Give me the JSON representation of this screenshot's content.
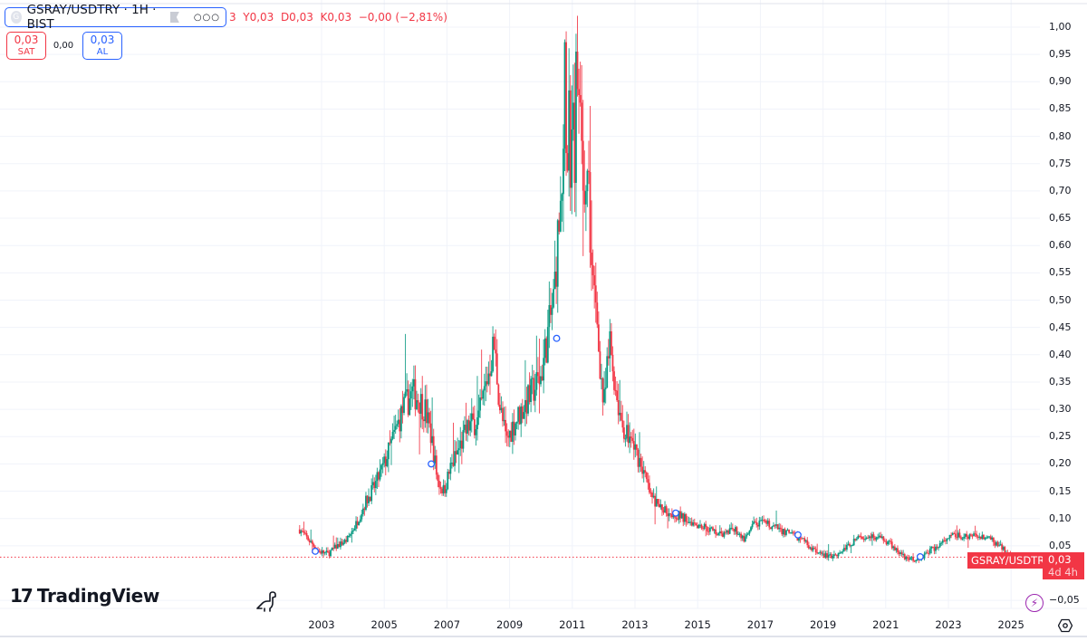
{
  "header": {
    "symbol_title": "GSRAY/USDTRY · 1H · BIST",
    "symbol_icon_letter": "G",
    "ohlc_text": "3  Y0,03  D0,03  K0,03  −0,00 (−2,81%)",
    "sell": {
      "price": "0,03",
      "label": "SAT"
    },
    "spread": "0,00",
    "buy": {
      "price": "0,03",
      "label": "AL"
    }
  },
  "price_scale": {
    "labels": [
      "1,00",
      "0,95",
      "0,90",
      "0,85",
      "0,80",
      "0,75",
      "0,70",
      "0,65",
      "0,60",
      "0,55",
      "0,50",
      "0,45",
      "0,40",
      "0,35",
      "0,30",
      "0,25",
      "0,20",
      "0,15",
      "0,10",
      "0,05",
      "−0,05"
    ]
  },
  "time_scale": {
    "labels": [
      "2003",
      "2005",
      "2007",
      "2009",
      "2011",
      "2013",
      "2015",
      "2017",
      "2019",
      "2021",
      "2023",
      "2025"
    ]
  },
  "last_price_tag": {
    "symbol": "GSRAY/USDTRY",
    "price": "0,03",
    "countdown": "4d 4h"
  },
  "branding": {
    "logo_text": "TradingView",
    "logo_mark": "17"
  },
  "colors": {
    "up": "#089981",
    "down": "#f23645",
    "grid": "#f0f3fa",
    "accent": "#2962ff",
    "last_line": "#f23645"
  },
  "chart_data": {
    "type": "candlestick",
    "title": "GSRAY/USDTRY · 1H · BIST",
    "xlabel": "",
    "ylabel": "",
    "ylim": [
      -0.07,
      1.02
    ],
    "grid": true,
    "legend_position": "top-left",
    "last_value": 0.03,
    "change": "−0,00 (−2,81%)",
    "x": [
      2002.3,
      2002.6,
      2002.9,
      2003.2,
      2003.5,
      2003.8,
      2004.1,
      2004.4,
      2004.7,
      2005.0,
      2005.3,
      2005.6,
      2005.9,
      2006.1,
      2006.3,
      2006.5,
      2006.7,
      2006.9,
      2007.1,
      2007.4,
      2007.7,
      2008.0,
      2008.3,
      2008.5,
      2008.7,
      2008.9,
      2009.1,
      2009.4,
      2009.7,
      2010.0,
      2010.2,
      2010.4,
      2010.6,
      2010.8,
      2011.0,
      2011.2,
      2011.4,
      2011.6,
      2011.8,
      2012.0,
      2012.2,
      2012.4,
      2012.6,
      2012.9,
      2013.2,
      2013.5,
      2013.8,
      2014.2,
      2014.6,
      2015.0,
      2015.4,
      2015.8,
      2016.2,
      2016.5,
      2016.8,
      2017.2,
      2017.6,
      2018.0,
      2018.4,
      2018.8,
      2019.2,
      2019.6,
      2020.0,
      2020.4,
      2020.8,
      2021.2,
      2021.6,
      2022.0,
      2022.4,
      2022.8,
      2023.2,
      2023.6,
      2024.0,
      2024.4,
      2024.8,
      2025.0
    ],
    "values": [
      0.08,
      0.06,
      0.04,
      0.035,
      0.05,
      0.06,
      0.09,
      0.13,
      0.16,
      0.2,
      0.25,
      0.3,
      0.33,
      0.32,
      0.3,
      0.25,
      0.17,
      0.15,
      0.19,
      0.23,
      0.27,
      0.28,
      0.36,
      0.42,
      0.3,
      0.24,
      0.27,
      0.3,
      0.33,
      0.36,
      0.43,
      0.5,
      0.66,
      0.82,
      0.75,
      0.86,
      0.7,
      0.55,
      0.45,
      0.3,
      0.42,
      0.33,
      0.27,
      0.24,
      0.2,
      0.14,
      0.12,
      0.11,
      0.1,
      0.09,
      0.08,
      0.07,
      0.08,
      0.06,
      0.09,
      0.09,
      0.08,
      0.07,
      0.06,
      0.035,
      0.03,
      0.04,
      0.06,
      0.07,
      0.065,
      0.05,
      0.03,
      0.025,
      0.04,
      0.055,
      0.07,
      0.065,
      0.07,
      0.06,
      0.04,
      0.03
    ],
    "peak": {
      "x": 2011.0,
      "high": 0.92
    },
    "markers": [
      {
        "x": 2002.8,
        "y": 0.04
      },
      {
        "x": 2006.5,
        "y": 0.2
      },
      {
        "x": 2010.5,
        "y": 0.43
      },
      {
        "x": 2014.3,
        "y": 0.11
      },
      {
        "x": 2018.2,
        "y": 0.07
      },
      {
        "x": 2022.1,
        "y": 0.03
      }
    ]
  }
}
